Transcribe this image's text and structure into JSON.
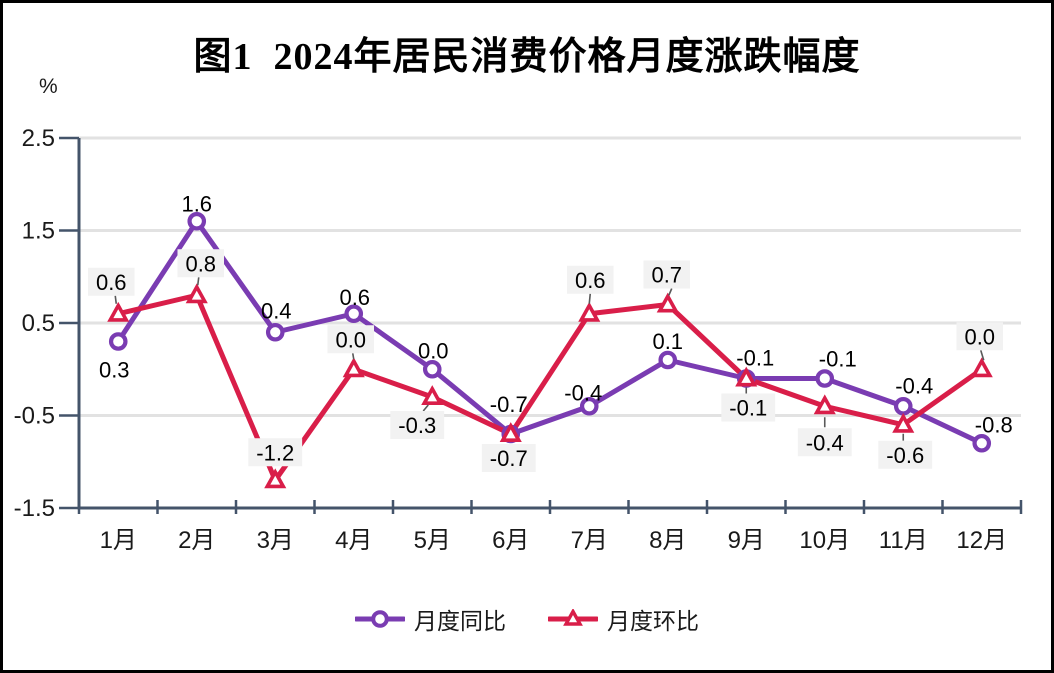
{
  "figure": {
    "title": "图1  2024年居民消费价格月度涨跌幅度",
    "y_unit": "%"
  },
  "chart_data": {
    "type": "line",
    "categories": [
      "1月",
      "2月",
      "3月",
      "4月",
      "5月",
      "6月",
      "7月",
      "8月",
      "9月",
      "10月",
      "11月",
      "12月"
    ],
    "series": [
      {
        "key": "tongbi",
        "name": "月度同比",
        "marker": "circle",
        "color": "#7A3CB2",
        "values": [
          0.3,
          1.6,
          0.4,
          0.6,
          0.0,
          -0.7,
          -0.4,
          0.1,
          -0.1,
          -0.1,
          -0.4,
          -0.8
        ]
      },
      {
        "key": "huanbi",
        "name": "月度环比",
        "marker": "triangle",
        "color": "#D91E49",
        "values": [
          0.6,
          0.8,
          -1.2,
          0.0,
          -0.3,
          -0.7,
          0.6,
          0.7,
          -0.1,
          -0.4,
          -0.6,
          0.0
        ]
      }
    ],
    "ylim": [
      -1.5,
      2.5
    ],
    "yticks": [
      2.5,
      1.5,
      0.5,
      -0.5,
      -1.5
    ],
    "label_format": "1dp",
    "grid": true,
    "legend_position": "bottom",
    "colors": {
      "axis": "#44546A",
      "gridline": "#E2E2E2",
      "label_text": "#000000",
      "label_box_bg": "#F2F2F2",
      "leader_line": "#595959"
    }
  }
}
